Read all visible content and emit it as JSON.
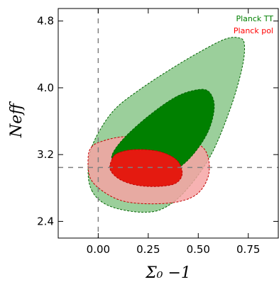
{
  "chart_data": {
    "type": "contour",
    "xlabel": "Σ₀ −1",
    "ylabel": "Neff",
    "xlim": [
      -0.2,
      0.9
    ],
    "ylim": [
      2.2,
      4.95
    ],
    "x_ticks": [
      0.0,
      0.25,
      0.5,
      0.75
    ],
    "x_tick_labels": [
      "0.00",
      "0.25",
      "0.50",
      "0.75"
    ],
    "y_ticks": [
      2.4,
      3.2,
      4.0,
      4.8
    ],
    "y_tick_labels": [
      "2.4",
      "3.2",
      "4.0",
      "4.8"
    ],
    "reference_lines": {
      "x": 0.0,
      "y": 3.046
    },
    "legend": {
      "placement": "top-right",
      "entries": [
        {
          "label": "Planck TT",
          "color": "#008000"
        },
        {
          "label": "Planck pol",
          "color": "#ff0000"
        }
      ]
    },
    "series": [
      {
        "name": "Planck TT",
        "color_outer": "#9bcf9b",
        "color_inner": "#008000",
        "edge_color": "#006400",
        "contour_95": [
          [
            -0.03,
            2.76
          ],
          [
            -0.05,
            2.95
          ],
          [
            -0.04,
            3.23
          ],
          [
            0.01,
            3.5
          ],
          [
            0.09,
            3.76
          ],
          [
            0.22,
            4.0
          ],
          [
            0.36,
            4.22
          ],
          [
            0.5,
            4.42
          ],
          [
            0.63,
            4.58
          ],
          [
            0.7,
            4.6
          ],
          [
            0.73,
            4.53
          ],
          [
            0.72,
            4.25
          ],
          [
            0.66,
            3.75
          ],
          [
            0.56,
            3.18
          ],
          [
            0.43,
            2.75
          ],
          [
            0.32,
            2.55
          ],
          [
            0.22,
            2.51
          ],
          [
            0.1,
            2.55
          ],
          [
            0.02,
            2.63
          ]
        ],
        "contour_68": [
          [
            0.08,
            3.08
          ],
          [
            0.07,
            3.2
          ],
          [
            0.13,
            3.4
          ],
          [
            0.25,
            3.66
          ],
          [
            0.38,
            3.88
          ],
          [
            0.48,
            3.97
          ],
          [
            0.55,
            3.96
          ],
          [
            0.58,
            3.78
          ],
          [
            0.55,
            3.48
          ],
          [
            0.47,
            3.19
          ],
          [
            0.38,
            3.01
          ],
          [
            0.27,
            2.92
          ],
          [
            0.17,
            2.92
          ],
          [
            0.1,
            2.97
          ]
        ]
      },
      {
        "name": "Planck pol",
        "color_outer": "#f5a3a3",
        "color_inner": "#e41a10",
        "edge_color": "#c00000",
        "contour_95": [
          [
            -0.03,
            3.3
          ],
          [
            -0.05,
            3.18
          ],
          [
            -0.04,
            2.92
          ],
          [
            0.03,
            2.75
          ],
          [
            0.13,
            2.64
          ],
          [
            0.27,
            2.61
          ],
          [
            0.41,
            2.64
          ],
          [
            0.5,
            2.74
          ],
          [
            0.55,
            2.94
          ],
          [
            0.55,
            3.16
          ],
          [
            0.51,
            3.31
          ],
          [
            0.4,
            3.4
          ],
          [
            0.26,
            3.43
          ],
          [
            0.11,
            3.41
          ],
          [
            0.02,
            3.36
          ]
        ],
        "contour_68": [
          [
            0.07,
            3.15
          ],
          [
            0.06,
            3.02
          ],
          [
            0.11,
            2.9
          ],
          [
            0.2,
            2.83
          ],
          [
            0.31,
            2.82
          ],
          [
            0.39,
            2.86
          ],
          [
            0.42,
            2.98
          ],
          [
            0.39,
            3.14
          ],
          [
            0.3,
            3.24
          ],
          [
            0.18,
            3.26
          ],
          [
            0.1,
            3.22
          ]
        ]
      }
    ]
  }
}
